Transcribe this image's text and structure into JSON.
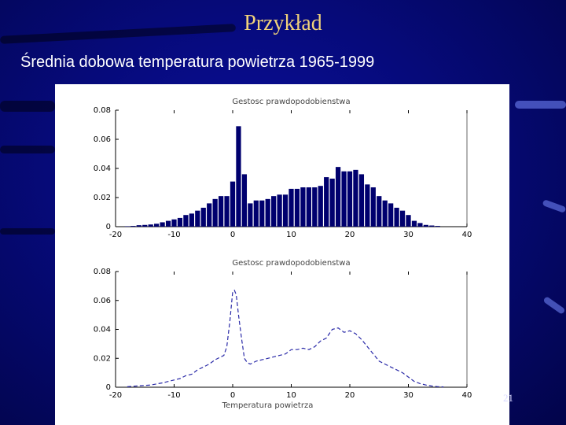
{
  "slide": {
    "title": "Przykład",
    "subtitle": "Średnia dobowa temperatura powietrza 1965-1999",
    "page_number": "21"
  },
  "colors": {
    "background": "#0b0f9c",
    "title": "#f0d27a",
    "bars": "#00006e",
    "curve": "#2a2aa8"
  },
  "chart_data": [
    {
      "type": "bar",
      "title": "Gestosc prawdopodobienstwa",
      "xlabel": "",
      "ylabel": "",
      "xlim": [
        -20,
        40
      ],
      "ylim": [
        0,
        0.08
      ],
      "xticks": [
        "-20",
        "-10",
        "0",
        "10",
        "20",
        "30",
        "40"
      ],
      "yticks": [
        "0",
        "0.02",
        "0.04",
        "0.06",
        "0.08"
      ],
      "bin_width": 1,
      "x": [
        -18,
        -17,
        -16,
        -15,
        -14,
        -13,
        -12,
        -11,
        -10,
        -9,
        -8,
        -7,
        -6,
        -5,
        -4,
        -3,
        -2,
        -1,
        0,
        1,
        2,
        3,
        4,
        5,
        6,
        7,
        8,
        9,
        10,
        11,
        12,
        13,
        14,
        15,
        16,
        17,
        18,
        19,
        20,
        21,
        22,
        23,
        24,
        25,
        26,
        27,
        28,
        29,
        30,
        31,
        32,
        33,
        34,
        35
      ],
      "values": [
        0.0003,
        0.0005,
        0.001,
        0.0012,
        0.0015,
        0.002,
        0.003,
        0.004,
        0.005,
        0.006,
        0.008,
        0.009,
        0.011,
        0.013,
        0.016,
        0.019,
        0.021,
        0.021,
        0.031,
        0.069,
        0.036,
        0.016,
        0.018,
        0.018,
        0.019,
        0.021,
        0.022,
        0.022,
        0.026,
        0.026,
        0.027,
        0.027,
        0.027,
        0.028,
        0.034,
        0.033,
        0.041,
        0.038,
        0.038,
        0.039,
        0.036,
        0.029,
        0.027,
        0.021,
        0.018,
        0.016,
        0.013,
        0.011,
        0.008,
        0.004,
        0.0025,
        0.0012,
        0.0008,
        0.0005
      ]
    },
    {
      "type": "line",
      "title": "Gestosc prawdopodobienstwa",
      "xlabel": "Temperatura powietrza",
      "ylabel": "",
      "xlim": [
        -20,
        40
      ],
      "ylim": [
        0,
        0.08
      ],
      "xticks": [
        "-20",
        "-10",
        "0",
        "10",
        "20",
        "30",
        "40"
      ],
      "yticks": [
        "0",
        "0.02",
        "0.04",
        "0.06",
        "0.08"
      ],
      "line_style": "dashed",
      "x": [
        -18,
        -16,
        -14,
        -12,
        -10,
        -9,
        -8,
        -7,
        -6,
        -5,
        -4,
        -3,
        -2,
        -1.5,
        -1,
        -0.5,
        0,
        0.3,
        0.6,
        1,
        1.5,
        2,
        2.5,
        3,
        4,
        5,
        6,
        7,
        8,
        9,
        10,
        11,
        12,
        13,
        14,
        15,
        16,
        16.5,
        17,
        18,
        19,
        20,
        21,
        22,
        23,
        24,
        25,
        26,
        27,
        28,
        29,
        30,
        31,
        32,
        33,
        34,
        35,
        36
      ],
      "y": [
        0.0003,
        0.001,
        0.0015,
        0.003,
        0.005,
        0.006,
        0.008,
        0.009,
        0.012,
        0.014,
        0.016,
        0.019,
        0.021,
        0.022,
        0.028,
        0.045,
        0.066,
        0.067,
        0.064,
        0.05,
        0.034,
        0.02,
        0.017,
        0.016,
        0.018,
        0.019,
        0.02,
        0.021,
        0.022,
        0.023,
        0.026,
        0.026,
        0.027,
        0.026,
        0.028,
        0.032,
        0.034,
        0.037,
        0.04,
        0.041,
        0.038,
        0.039,
        0.037,
        0.033,
        0.028,
        0.023,
        0.018,
        0.016,
        0.014,
        0.012,
        0.01,
        0.007,
        0.004,
        0.0025,
        0.0015,
        0.0008,
        0.0004,
        0.0002
      ]
    }
  ]
}
